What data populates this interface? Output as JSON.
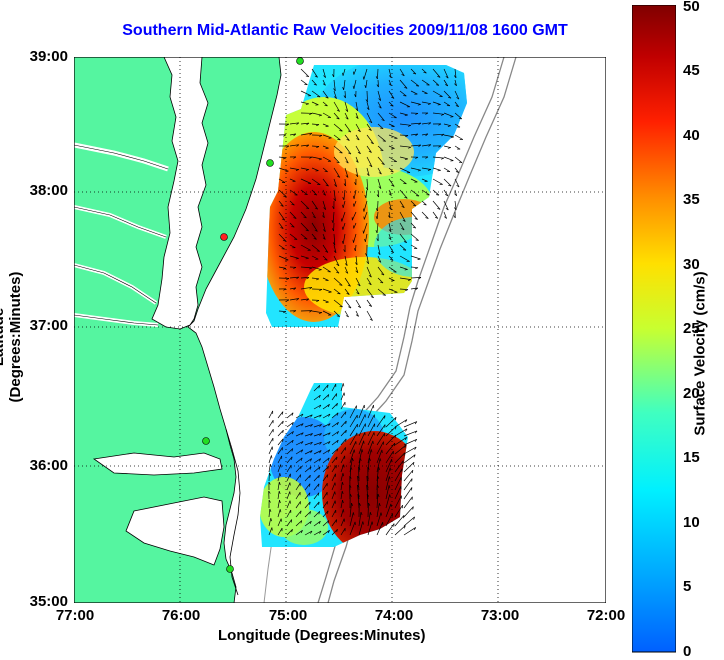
{
  "title": "Southern Mid-Atlantic Raw Velocities 2009/11/08 1600 GMT",
  "x_axis": {
    "label": "Longitude (Degrees:Minutes)",
    "ticks": [
      "77:00",
      "76:00",
      "75:00",
      "74:00",
      "73:00",
      "72:00"
    ]
  },
  "y_axis": {
    "label": "Latitude (Degrees:Minutes)",
    "ticks": [
      "39:00",
      "38:00",
      "37:00",
      "36:00",
      "35:00"
    ]
  },
  "colorbar": {
    "label": "Surface Velocity (cm/s)",
    "ticks": [
      "50",
      "45",
      "40",
      "35",
      "30",
      "25",
      "20",
      "15",
      "10",
      "5",
      "0"
    ],
    "range": [
      0,
      50
    ],
    "colormap": "jet"
  },
  "map": {
    "land_color": "#55f5a0",
    "ocean_color": "#ffffff",
    "grid": "dotted"
  }
}
